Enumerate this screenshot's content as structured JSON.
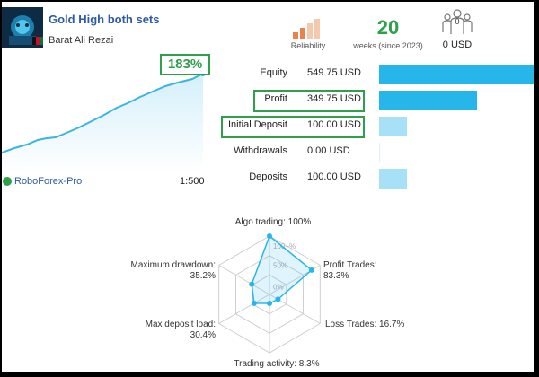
{
  "header": {
    "title": "Gold High both sets",
    "owner": "Barat Ali Rezai",
    "reliability_label": "Reliability",
    "weeks_value": "20",
    "weeks_label": "weeks (since 2023)",
    "investors_count": "0",
    "investors_value": "0 USD",
    "icons": {
      "avatar": "avatar-icon",
      "flag": "flag-icon",
      "reliability": "signal-bars-icon",
      "investors": "people-icon"
    }
  },
  "growth": {
    "percent": "183%",
    "broker": "RoboForex-Pro",
    "leverage": "1:500",
    "broker_icon": "check-circle-icon"
  },
  "stats": [
    {
      "label": "Equity",
      "value": "549.75 USD",
      "amount": 549.75,
      "highlight": false
    },
    {
      "label": "Profit",
      "value": "349.75 USD",
      "amount": 349.75,
      "highlight": true
    },
    {
      "label": "Initial Deposit",
      "value": "100.00 USD",
      "amount": 100.0,
      "highlight": true
    },
    {
      "label": "Withdrawals",
      "value": "0.00 USD",
      "amount": 0.0,
      "highlight": false
    },
    {
      "label": "Deposits",
      "value": "100.00 USD",
      "amount": 100.0,
      "highlight": false
    }
  ],
  "radar": {
    "ticks": [
      "100+%",
      "50%",
      "0%"
    ],
    "axes": [
      {
        "label": "Algo trading: 100%",
        "value": 100
      },
      {
        "label": "Profit Trades: 83.3%",
        "value": 83.3
      },
      {
        "label": "Loss Trades: 16.7%",
        "value": 16.7
      },
      {
        "label": "Trading activity: 8.3%",
        "value": 8.3
      },
      {
        "label": "Max deposit load: 30.4%",
        "value": 30.4
      },
      {
        "label": "Maximum drawdown: 35.2%",
        "value": 35.2
      }
    ]
  },
  "colors": {
    "accent_green": "#2e9f4a",
    "title_blue": "#2a5aa8",
    "bar_strong": "#27b6ea",
    "bar_light": "#a6e1f7",
    "growth_line": "#3bb4e0",
    "reliability_strong": "#e8834a",
    "reliability_light": "#f6c9ad"
  }
}
